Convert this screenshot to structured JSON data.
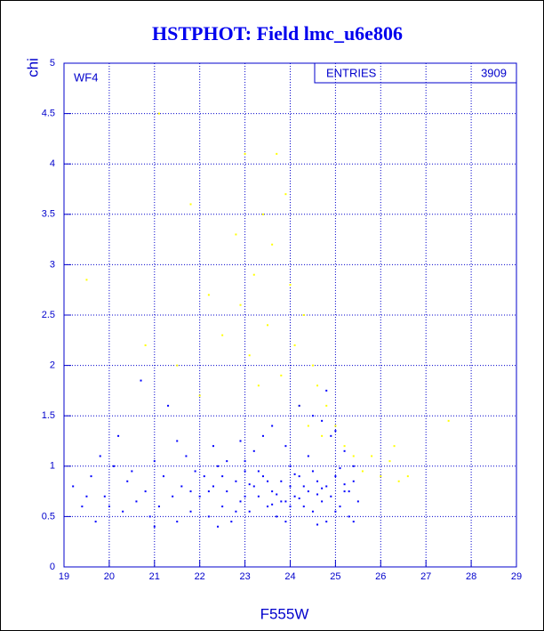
{
  "chart_data": {
    "type": "scatter",
    "title": "HSTPHOT: Field lmc_u6e806",
    "x_label": "F555W",
    "y_label": "chi",
    "annotation": "WF4",
    "stats": {
      "label": "ENTRIES",
      "value": 3909
    },
    "xlim": [
      19,
      29
    ],
    "ylim": [
      0,
      5
    ],
    "xticks": [
      19,
      20,
      21,
      22,
      23,
      24,
      25,
      26,
      27,
      28,
      29
    ],
    "yticks": [
      0,
      0.5,
      1,
      1.5,
      2,
      2.5,
      3,
      3.5,
      4,
      4.5,
      5
    ],
    "grid": true,
    "series": [
      {
        "color": "#ffff00",
        "x": [
          21.1,
          22.2,
          22.5,
          22.8,
          22.9,
          23.0,
          23.1,
          23.2,
          23.3,
          23.4,
          23.5,
          23.6,
          23.7,
          23.8,
          23.9,
          24.0,
          24.1,
          24.2,
          24.3,
          24.4,
          24.5,
          24.6,
          24.7,
          24.8,
          25.0,
          25.2,
          25.4,
          25.6,
          25.8,
          26.0,
          26.2,
          26.4,
          26.6,
          26.3,
          27.5,
          19.5,
          20.8,
          21.5,
          22.0,
          21.8
        ],
        "values": [
          4.5,
          2.7,
          2.3,
          3.3,
          2.6,
          4.1,
          2.1,
          2.9,
          1.8,
          3.5,
          2.4,
          3.2,
          4.1,
          1.9,
          3.7,
          2.8,
          2.2,
          1.6,
          2.5,
          1.4,
          2.0,
          1.8,
          1.3,
          1.6,
          1.4,
          1.2,
          1.1,
          0.95,
          1.1,
          0.9,
          1.05,
          0.85,
          0.9,
          1.2,
          1.45,
          2.85,
          2.2,
          2.0,
          1.7,
          3.6
        ]
      },
      {
        "color": "#0000ff",
        "x": [
          19.2,
          19.4,
          19.6,
          19.7,
          19.9,
          20.1,
          20.3,
          20.4,
          20.6,
          20.7,
          20.8,
          20.9,
          21.0,
          21.1,
          21.2,
          21.3,
          21.4,
          21.5,
          21.6,
          21.7,
          21.8,
          21.9,
          20.2,
          19.8,
          21.0,
          20.5,
          21.5,
          19.5,
          20.0,
          21.8,
          22.0,
          22.1,
          22.2,
          22.3,
          22.4,
          22.5,
          22.6,
          22.7,
          22.8,
          22.9,
          23.0,
          23.1,
          23.2,
          23.3,
          23.4,
          23.5,
          23.6,
          23.7,
          23.8,
          23.9,
          24.0,
          24.1,
          24.2,
          24.3,
          24.4,
          24.5,
          24.6,
          24.7,
          24.8,
          24.9,
          25.0,
          25.1,
          25.2,
          25.3,
          25.4,
          25.5,
          22.5,
          23.0,
          23.5,
          24.0,
          24.5,
          25.0,
          22.8,
          23.3,
          23.8,
          24.3,
          24.8,
          25.3,
          22.2,
          23.7,
          24.2,
          24.7,
          25.2,
          23.1,
          23.6,
          24.1,
          24.6,
          25.1,
          22.6,
          23.2,
          23.9,
          24.4,
          24.9,
          25.2,
          24.5,
          24.2,
          23.6,
          22.9,
          24.8,
          23.4,
          22.3,
          24.7,
          25.0,
          23.0,
          24.0,
          25.4,
          22.4,
          23.9,
          25.4,
          24.6
        ],
        "values": [
          0.8,
          0.6,
          0.9,
          0.45,
          0.7,
          1.0,
          0.55,
          0.85,
          0.65,
          1.85,
          0.75,
          0.5,
          1.05,
          0.6,
          0.9,
          1.6,
          0.7,
          0.45,
          0.8,
          1.1,
          0.55,
          0.95,
          1.3,
          1.1,
          0.4,
          0.95,
          1.25,
          0.7,
          0.6,
          0.75,
          0.7,
          0.9,
          0.5,
          0.8,
          1.0,
          0.6,
          0.75,
          0.45,
          0.85,
          0.65,
          0.95,
          0.55,
          0.8,
          0.7,
          0.9,
          0.6,
          0.75,
          0.5,
          0.85,
          0.65,
          0.8,
          0.7,
          0.9,
          0.6,
          0.75,
          0.55,
          0.85,
          0.65,
          0.8,
          0.7,
          0.9,
          0.6,
          0.75,
          0.5,
          0.85,
          0.65,
          0.9,
          0.7,
          0.85,
          0.6,
          0.95,
          0.55,
          0.55,
          0.95,
          0.65,
          0.8,
          0.45,
          0.75,
          0.75,
          0.72,
          0.68,
          0.78,
          0.82,
          0.82,
          0.62,
          0.92,
          0.72,
          0.98,
          1.05,
          1.15,
          1.2,
          1.1,
          1.3,
          1.15,
          1.5,
          1.6,
          1.4,
          1.25,
          1.75,
          1.3,
          1.2,
          1.45,
          1.35,
          1.05,
          1.0,
          1.0,
          0.4,
          0.45,
          0.45,
          0.42
        ]
      }
    ]
  }
}
